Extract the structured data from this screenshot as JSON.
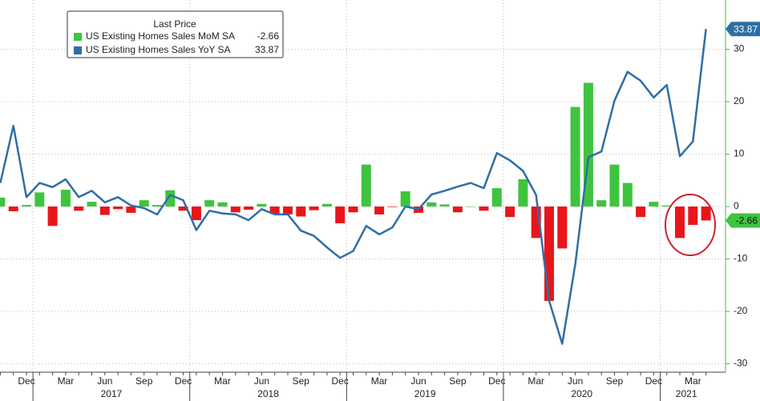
{
  "chart_data": {
    "type": "bar_line",
    "legend_title": "Last Price",
    "categories": [
      null,
      null,
      "Dec",
      null,
      null,
      "Mar",
      null,
      null,
      "Jun",
      null,
      null,
      "Sep",
      null,
      null,
      "Dec",
      null,
      null,
      "Mar",
      null,
      null,
      "Jun",
      null,
      null,
      "Sep",
      null,
      null,
      "Dec",
      null,
      null,
      "Mar",
      null,
      null,
      "Jun",
      null,
      null,
      "Sep",
      null,
      null,
      "Dec",
      null,
      null,
      "Mar",
      null,
      null,
      "Jun",
      null,
      null,
      "Sep",
      null,
      null,
      "Dec",
      null,
      null,
      "Mar",
      null
    ],
    "years": [
      "2017",
      "2018",
      "2019",
      "2020",
      "2021"
    ],
    "series": [
      {
        "name": "US Existing Homes Sales MoM SA",
        "type": "bar",
        "color": "#3ec43e",
        "negative_color": "#e8161b",
        "values": [
          1.7,
          -0.9,
          0.3,
          2.7,
          -3.7,
          3.2,
          -0.8,
          0.9,
          -1.6,
          -0.5,
          -1.2,
          1.2,
          0.3,
          3.1,
          -0.8,
          -2.6,
          1.2,
          0.8,
          -1.1,
          -0.6,
          0.5,
          -1.4,
          -1.5,
          -1.9,
          -0.7,
          0.5,
          -3.2,
          -1.1,
          8.0,
          -1.5,
          -0.1,
          2.9,
          -1.2,
          0.8,
          0.4,
          -1.1,
          0.0,
          -0.8,
          3.5,
          -2.0,
          5.2,
          -6.0,
          -18.0,
          -8.0,
          19.0,
          23.6,
          1.2,
          8.0,
          4.5,
          -2.0,
          0.9,
          0.2,
          -6.0,
          -3.5,
          -2.66
        ]
      },
      {
        "name": "US Existing Homes Sales YoY SA",
        "type": "line",
        "color": "#2f6ea5",
        "values": [
          4.5,
          15.4,
          1.8,
          4.5,
          3.7,
          5.2,
          1.8,
          3.0,
          0.8,
          1.8,
          0.2,
          -0.3,
          -1.5,
          2.2,
          1.2,
          -4.5,
          -0.8,
          -1.3,
          -1.5,
          -2.6,
          -0.5,
          -1.5,
          -1.5,
          -4.6,
          -5.6,
          -7.8,
          -9.8,
          -8.5,
          -3.7,
          -5.3,
          -4.0,
          0.0,
          -0.5,
          2.3,
          3.0,
          3.8,
          4.5,
          3.5,
          10.2,
          8.8,
          6.8,
          2.2,
          -18.0,
          -26.2,
          -11.0,
          9.4,
          10.5,
          20.2,
          25.7,
          24.0,
          20.8,
          23.2,
          9.6,
          12.4,
          33.87
        ]
      }
    ],
    "ylim": [
      -31.6,
      39.4
    ],
    "yticks": [
      30,
      20,
      10,
      0,
      -10,
      -20,
      -30
    ],
    "grid": true
  }
}
